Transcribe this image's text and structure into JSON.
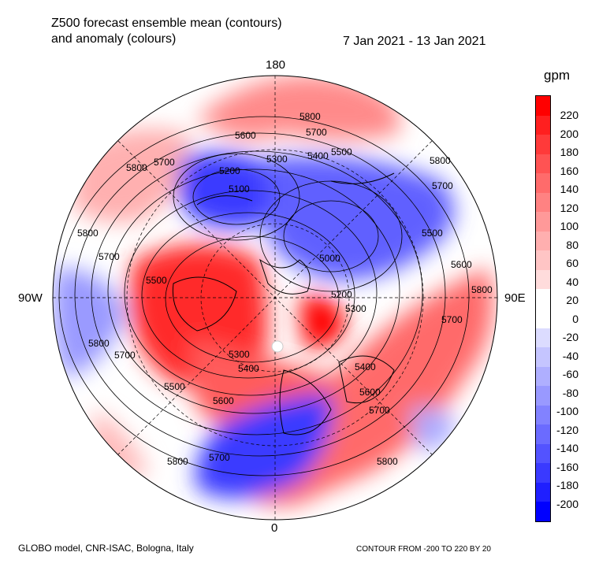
{
  "title": {
    "line1": "Z500 forecast ensemble mean (contours)",
    "line2": "and anomaly (colours)",
    "dates": "7 Jan 2021 - 13 Jan 2021"
  },
  "longitude_labels": {
    "top": "180",
    "left": "90W",
    "right": "90E",
    "bottom": "0"
  },
  "colorbar": {
    "unit": "gpm",
    "ticks": [
      "220",
      "200",
      "180",
      "160",
      "140",
      "120",
      "100",
      "80",
      "60",
      "40",
      "20",
      "0",
      "-20",
      "-40",
      "-60",
      "-80",
      "-100",
      "-120",
      "-140",
      "-160",
      "-180",
      "-200"
    ],
    "colors": [
      "#ff0000",
      "#ff1f1f",
      "#ff3a3a",
      "#ff5353",
      "#ff6b6b",
      "#ff8282",
      "#ff9999",
      "#ffafaf",
      "#ffc5c5",
      "#ffdcdc",
      "#ffffff",
      "#ffffff",
      "#dcdcff",
      "#c5c5ff",
      "#afafff",
      "#9999ff",
      "#8282ff",
      "#6b6bff",
      "#5353ff",
      "#3a3aff",
      "#1f1fff",
      "#0000ff"
    ]
  },
  "contour_labels": [
    "5800",
    "5700",
    "5600",
    "5500",
    "5400",
    "5300",
    "5200",
    "5100",
    "5000"
  ],
  "footer": {
    "left": "GLOBO model, CNR-ISAC, Bologna, Italy",
    "right": "CONTOUR FROM -200 TO 220 BY 20"
  }
}
